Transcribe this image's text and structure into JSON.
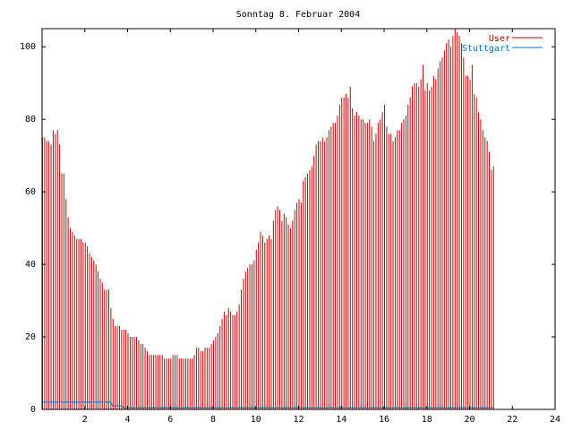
{
  "chart_data": {
    "type": "bar",
    "title": "Sonntag 8. Februar 2004",
    "xlabel": "",
    "ylabel": "",
    "xlim": [
      0,
      24
    ],
    "ylim": [
      0,
      105
    ],
    "x_ticks": [
      {
        "value": 2,
        "label": "2"
      },
      {
        "value": 4,
        "label": "4"
      },
      {
        "value": 6,
        "label": "6"
      },
      {
        "value": 8,
        "label": "8"
      },
      {
        "value": 10,
        "label": "10"
      },
      {
        "value": 12,
        "label": "12"
      },
      {
        "value": 14,
        "label": "14"
      },
      {
        "value": 16,
        "label": "16"
      },
      {
        "value": 18,
        "label": "18"
      },
      {
        "value": 20,
        "label": "20"
      },
      {
        "value": 22,
        "label": "22"
      },
      {
        "value": 24,
        "label": "24"
      }
    ],
    "y_ticks": [
      {
        "value": 0,
        "label": "0"
      },
      {
        "value": 20,
        "label": "20"
      },
      {
        "value": 40,
        "label": "40"
      },
      {
        "value": 60,
        "label": "60"
      },
      {
        "value": 80,
        "label": "80"
      },
      {
        "value": 100,
        "label": "100"
      }
    ],
    "grid": false,
    "legend_position": "top-right",
    "sample_interval_hours": 0.1,
    "series": [
      {
        "name": "User",
        "color": "#cc0000",
        "style": "impulses",
        "values": [
          75,
          75,
          74,
          74,
          73,
          77,
          76,
          77,
          73,
          65,
          65,
          58,
          53,
          50,
          49,
          48,
          47,
          47,
          47,
          46,
          46,
          45,
          43,
          42,
          41,
          40,
          38,
          36,
          35,
          33,
          33,
          33,
          28,
          25,
          23,
          23,
          23,
          22,
          22,
          22,
          21,
          20,
          20,
          20,
          20,
          19,
          18,
          18,
          17,
          16,
          15,
          15,
          15,
          15,
          15,
          15,
          15,
          14,
          14,
          14,
          14,
          15,
          15,
          15,
          14,
          14,
          14,
          14,
          14,
          14,
          14,
          15,
          17,
          17,
          16,
          16,
          17,
          17,
          17,
          18,
          19,
          20,
          21,
          23,
          25,
          27,
          26,
          28,
          27,
          26,
          26,
          27,
          29,
          33,
          36,
          38,
          39,
          40,
          40,
          41,
          44,
          46,
          49,
          48,
          46,
          47,
          48,
          47,
          52,
          55,
          56,
          55,
          52,
          54,
          53,
          51,
          50,
          52,
          55,
          57,
          58,
          57,
          63,
          64,
          65,
          66,
          67,
          70,
          73,
          74,
          74,
          75,
          74,
          75,
          77,
          78,
          79,
          79,
          81,
          84,
          86,
          86,
          87,
          86,
          89,
          83,
          81,
          82,
          81,
          80,
          80,
          79,
          79,
          80,
          78,
          74,
          76,
          79,
          80,
          82,
          84,
          78,
          76,
          76,
          74,
          75,
          77,
          77,
          79,
          80,
          81,
          84,
          86,
          89,
          90,
          90,
          89,
          91,
          95,
          88,
          90,
          88,
          89,
          92,
          91,
          94,
          96,
          97,
          99,
          101,
          102,
          100,
          103,
          105,
          104,
          103,
          101,
          97,
          92,
          92,
          91,
          95,
          87,
          86,
          82,
          80,
          77,
          75,
          74,
          71,
          66,
          67
        ]
      },
      {
        "name": "Stuttgart",
        "color": "#0070c0",
        "style": "line",
        "values": [
          2,
          2,
          2,
          2,
          2,
          2,
          2,
          2,
          2,
          2,
          2,
          2,
          2,
          2,
          2,
          2,
          2,
          2,
          2,
          2,
          2,
          2,
          2,
          2,
          2,
          2,
          2,
          2,
          2,
          2,
          2,
          2,
          2,
          1,
          1,
          1,
          1,
          1,
          0.5,
          0.5,
          0.5,
          0.5,
          0.5,
          0.5,
          0.5,
          0.5,
          0.5,
          0.5,
          0.5,
          0.5,
          0.5,
          0.5,
          0.5,
          0.5,
          0.5,
          0.5,
          0.5,
          0.5,
          0.5,
          0.5,
          0.5,
          0.5,
          0.5,
          0.5,
          0.5,
          0.5,
          0.5,
          0.5,
          0.5,
          0.5,
          0.5,
          0.5,
          0.5,
          0.5,
          0.5,
          0.5,
          0.5,
          0.5,
          0.5,
          0.5,
          0.5,
          0.5,
          0.5,
          0.5,
          0.5,
          0.5,
          0.5,
          0.5,
          0.5,
          0.5,
          0.5,
          0.5,
          0.5,
          0.5,
          0.5,
          0.5,
          0.5,
          0.5,
          0.5,
          0.5,
          0.5,
          0.5,
          0.5,
          0.5,
          0.5,
          0.5,
          0.5,
          0.5,
          0.5,
          0.5,
          0.5,
          0.5,
          0.5,
          0.5,
          0.5,
          0.5,
          0.5,
          0.5,
          0.5,
          0.5,
          0.5,
          0.5,
          0.5,
          0.5,
          0.5,
          0.5,
          0.5,
          0.5,
          0.5,
          0.5,
          0.5,
          0.5,
          0.5,
          0.5,
          0.5,
          0.5,
          0.5,
          0.5,
          0.5,
          0.5,
          0.5,
          0.5,
          0.5,
          0.5,
          0.5,
          0.5,
          0.5,
          0.5,
          0.5,
          0.5,
          0.5,
          0.5,
          0.5,
          0.5,
          0.5,
          0.5,
          0.5,
          0.5,
          0.5,
          0.5,
          0.5,
          0.5,
          0.5,
          0.5,
          0.5,
          0.5,
          0.5,
          0.5,
          0.5,
          0.5,
          0.5,
          0.5,
          0.5,
          0.5,
          0.5,
          0.5,
          0.5,
          0.5,
          0.5,
          0.5,
          0.5,
          0.5,
          0.5,
          0.5,
          0.5,
          0.5,
          0.5,
          0.5,
          0.5,
          0.5,
          0.5,
          0.5,
          0.5,
          0.5,
          0.5,
          0.5,
          0.5,
          0.5,
          0.5,
          0.5,
          0.5,
          0.5,
          0.5,
          0.5,
          0.5,
          0.5,
          0.5,
          0.5,
          0.5,
          0.5,
          0.5,
          0.5
        ]
      }
    ]
  }
}
